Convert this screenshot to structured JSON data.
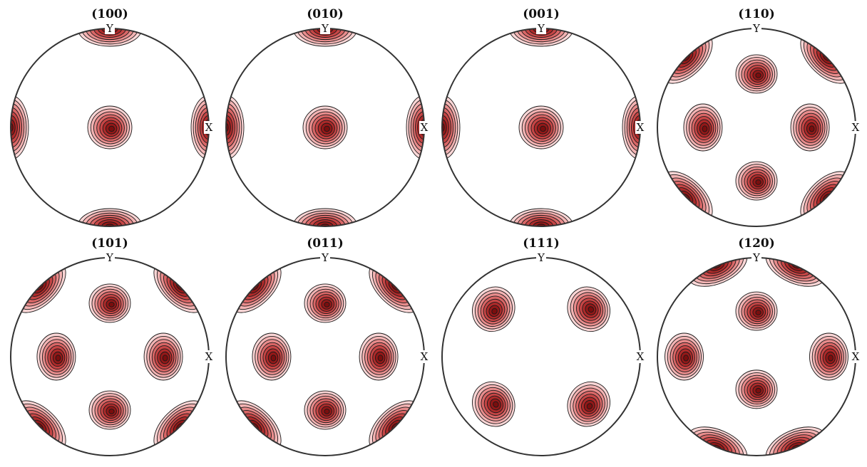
{
  "figure": {
    "axis_labels": {
      "x": "X",
      "y": "Y"
    },
    "contour_colors": [
      "#fbd6d6",
      "#f3b3b3",
      "#e88c8c",
      "#d96666",
      "#c64545",
      "#ad2a2a",
      "#931818",
      "#7a0e0e"
    ],
    "pole_figures": [
      {
        "title": "(100)",
        "poles": [
          {
            "u": 0,
            "v": 0,
            "kind": "center"
          },
          {
            "u": 0,
            "v": 1,
            "kind": "rim"
          },
          {
            "u": 0,
            "v": -1,
            "kind": "rim"
          },
          {
            "u": 1,
            "v": 0,
            "kind": "rim"
          },
          {
            "u": -1,
            "v": 0,
            "kind": "rim"
          }
        ]
      },
      {
        "title": "(010)",
        "poles": [
          {
            "u": 0,
            "v": 0,
            "kind": "center"
          },
          {
            "u": 0,
            "v": 1,
            "kind": "rim"
          },
          {
            "u": 0,
            "v": -1,
            "kind": "rim"
          },
          {
            "u": 1,
            "v": 0,
            "kind": "rim"
          },
          {
            "u": -1,
            "v": 0,
            "kind": "rim"
          }
        ]
      },
      {
        "title": "(001)",
        "poles": [
          {
            "u": 0,
            "v": 0,
            "kind": "center"
          },
          {
            "u": 0,
            "v": 1,
            "kind": "rim"
          },
          {
            "u": 0,
            "v": -1,
            "kind": "rim"
          },
          {
            "u": 1,
            "v": 0,
            "kind": "rim"
          },
          {
            "u": -1,
            "v": 0,
            "kind": "rim"
          }
        ]
      },
      {
        "title": "(110)",
        "poles": [
          {
            "u": 0,
            "v": 0.54,
            "kind": "inner"
          },
          {
            "u": 0,
            "v": -0.54,
            "kind": "inner"
          },
          {
            "u": 0.54,
            "v": 0,
            "kind": "inner"
          },
          {
            "u": -0.54,
            "v": 0,
            "kind": "inner"
          },
          {
            "u": 0.707,
            "v": 0.707,
            "kind": "rim"
          },
          {
            "u": -0.707,
            "v": 0.707,
            "kind": "rim"
          },
          {
            "u": 0.707,
            "v": -0.707,
            "kind": "rim"
          },
          {
            "u": -0.707,
            "v": -0.707,
            "kind": "rim"
          }
        ]
      },
      {
        "title": "(101)",
        "poles": [
          {
            "u": 0,
            "v": 0.54,
            "kind": "inner"
          },
          {
            "u": 0,
            "v": -0.54,
            "kind": "inner"
          },
          {
            "u": 0.54,
            "v": 0,
            "kind": "inner"
          },
          {
            "u": -0.54,
            "v": 0,
            "kind": "inner"
          },
          {
            "u": 0.707,
            "v": 0.707,
            "kind": "rim"
          },
          {
            "u": -0.707,
            "v": 0.707,
            "kind": "rim"
          },
          {
            "u": 0.707,
            "v": -0.707,
            "kind": "rim"
          },
          {
            "u": -0.707,
            "v": -0.707,
            "kind": "rim"
          }
        ]
      },
      {
        "title": "(011)",
        "poles": [
          {
            "u": 0,
            "v": 0.54,
            "kind": "inner"
          },
          {
            "u": 0,
            "v": -0.54,
            "kind": "inner"
          },
          {
            "u": 0.54,
            "v": 0,
            "kind": "inner"
          },
          {
            "u": -0.54,
            "v": 0,
            "kind": "inner"
          },
          {
            "u": 0.707,
            "v": 0.707,
            "kind": "rim"
          },
          {
            "u": -0.707,
            "v": 0.707,
            "kind": "rim"
          },
          {
            "u": 0.707,
            "v": -0.707,
            "kind": "rim"
          },
          {
            "u": -0.707,
            "v": -0.707,
            "kind": "rim"
          }
        ]
      },
      {
        "title": "(111)",
        "poles": [
          {
            "u": 0.48,
            "v": 0.48,
            "kind": "inner"
          },
          {
            "u": -0.48,
            "v": 0.48,
            "kind": "inner"
          },
          {
            "u": 0.48,
            "v": -0.48,
            "kind": "inner"
          },
          {
            "u": -0.48,
            "v": -0.48,
            "kind": "inner"
          }
        ]
      },
      {
        "title": "(120)",
        "poles": [
          {
            "u": 0,
            "v": 0.46,
            "kind": "inner"
          },
          {
            "u": 0,
            "v": -0.33,
            "kind": "inner"
          },
          {
            "u": 0.73,
            "v": 0,
            "kind": "inner"
          },
          {
            "u": -0.73,
            "v": 0,
            "kind": "inner"
          },
          {
            "u": 0.4,
            "v": 0.92,
            "kind": "rim"
          },
          {
            "u": -0.4,
            "v": 0.92,
            "kind": "rim"
          },
          {
            "u": 0.4,
            "v": -0.92,
            "kind": "rim"
          },
          {
            "u": -0.4,
            "v": -0.92,
            "kind": "rim"
          }
        ]
      }
    ]
  }
}
